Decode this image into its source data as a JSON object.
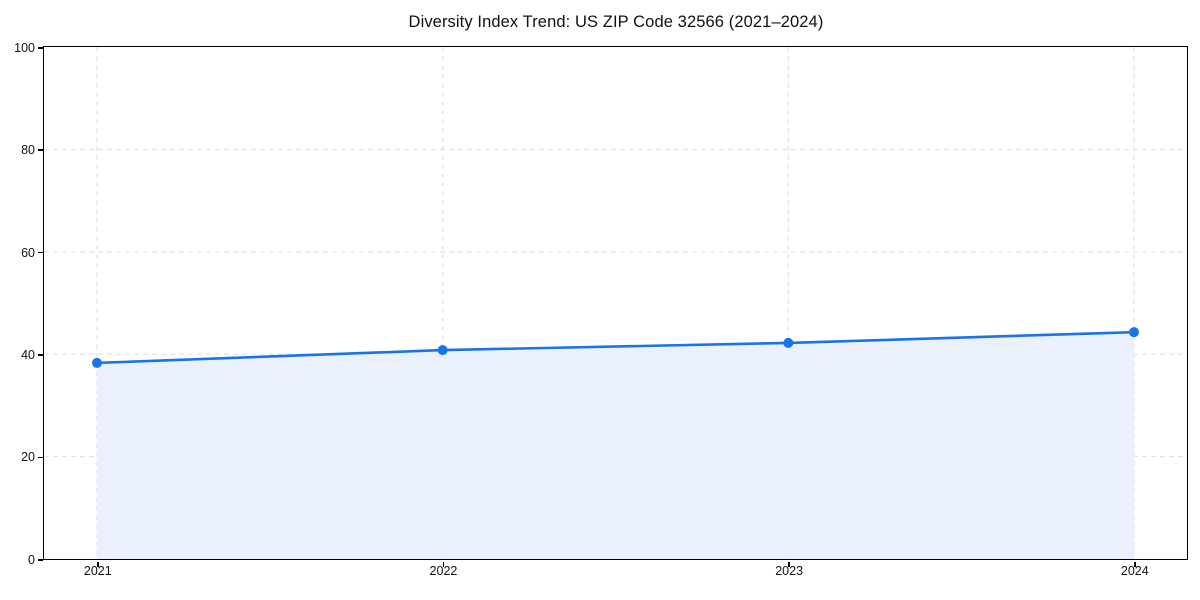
{
  "chart_data": {
    "type": "area",
    "title": "Diversity Index Trend: US ZIP Code 32566 (2021–2024)",
    "x": [
      2021,
      2022,
      2023,
      2024
    ],
    "xtick_labels": [
      "2021",
      "2022",
      "2023",
      "2024"
    ],
    "series": [
      {
        "name": "Diversity Index",
        "values": [
          38.3,
          40.8,
          42.2,
          44.3
        ]
      }
    ],
    "xlabel": "",
    "ylabel": "",
    "ylim": [
      0,
      100
    ],
    "yticks": [
      0,
      20,
      40,
      60,
      80,
      100
    ],
    "grid": "dashed",
    "legend": "none",
    "colors": {
      "line": "#1a73e8",
      "marker": "#1a73e8",
      "fill": "#e8f0fc",
      "grid": "#e0e0e0",
      "spine": "#000000",
      "tick_label": "#111111",
      "title": "#111111"
    }
  }
}
